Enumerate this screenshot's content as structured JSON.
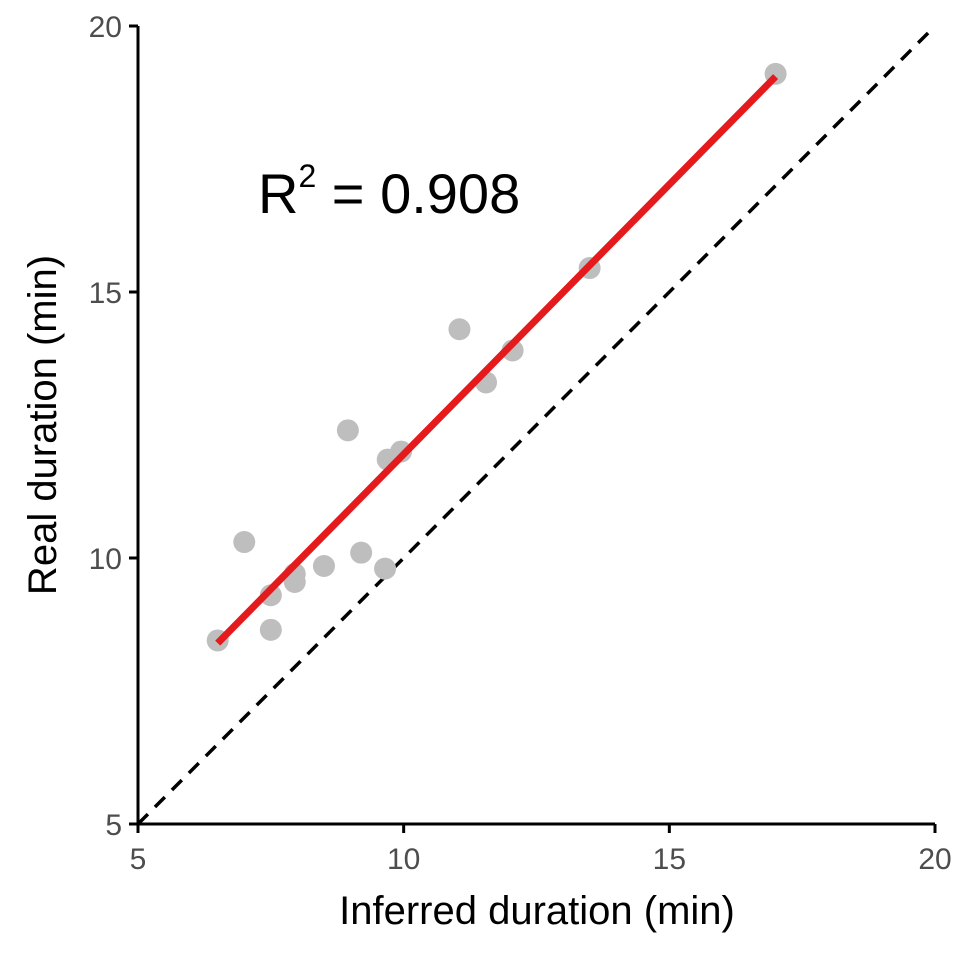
{
  "chart_data": {
    "type": "scatter",
    "title": "",
    "xlabel": "Inferred duration (min)",
    "ylabel": "Real duration (min)",
    "xlim": [
      5,
      20
    ],
    "ylim": [
      5,
      20
    ],
    "xticks": [
      "5",
      "10",
      "15",
      "20"
    ],
    "yticks": [
      "5",
      "10",
      "15",
      "20"
    ],
    "grid": false,
    "annotation": {
      "base": "R",
      "superscript": "2",
      "rest": " = 0.908"
    },
    "points": [
      {
        "x": 6.5,
        "y": 8.45
      },
      {
        "x": 7.0,
        "y": 10.3
      },
      {
        "x": 7.5,
        "y": 9.3
      },
      {
        "x": 7.5,
        "y": 8.65
      },
      {
        "x": 7.95,
        "y": 9.55
      },
      {
        "x": 7.95,
        "y": 9.7
      },
      {
        "x": 8.5,
        "y": 9.85
      },
      {
        "x": 8.95,
        "y": 12.4
      },
      {
        "x": 9.2,
        "y": 10.1
      },
      {
        "x": 9.65,
        "y": 9.8
      },
      {
        "x": 9.7,
        "y": 11.85
      },
      {
        "x": 9.95,
        "y": 12.0
      },
      {
        "x": 11.05,
        "y": 14.3
      },
      {
        "x": 11.55,
        "y": 13.3
      },
      {
        "x": 12.05,
        "y": 13.9
      },
      {
        "x": 13.5,
        "y": 15.45
      },
      {
        "x": 17.0,
        "y": 19.1
      }
    ],
    "fit_line": {
      "x1": 6.5,
      "y1": 8.4,
      "x2": 17.0,
      "y2": 19.05
    },
    "reference_line": {
      "x1": 5,
      "y1": 5,
      "x2": 20,
      "y2": 20,
      "style": "dashed"
    },
    "colors": {
      "points": "#bebebe",
      "fit_line": "#e41a1c",
      "reference_line": "#000000",
      "axis": "#000000"
    }
  }
}
